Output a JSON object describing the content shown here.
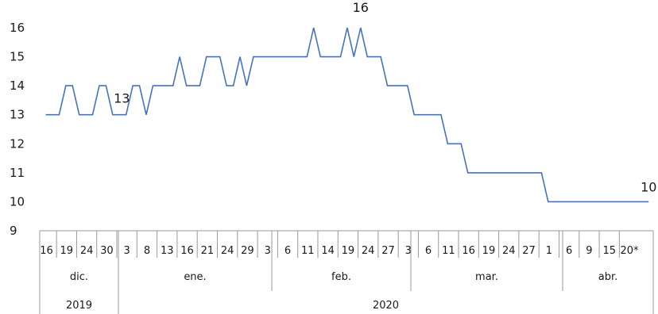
{
  "chart_data": {
    "type": "line",
    "title": "",
    "xlabel": "",
    "ylabel": "",
    "ylim": [
      9,
      16
    ],
    "yticks": [
      "9",
      "10",
      "11",
      "12",
      "13",
      "14",
      "15",
      "16"
    ],
    "grid": false,
    "legend": "none",
    "colors": {
      "series": "#4472c4",
      "axis": "#9a9a9a",
      "text": "#1a1a1a"
    },
    "x_tick_labels": [
      "16",
      "19",
      "24",
      "30",
      "3",
      "8",
      "13",
      "16",
      "21",
      "24",
      "29",
      "3",
      "6",
      "11",
      "14",
      "19",
      "24",
      "27",
      "3",
      "6",
      "11",
      "16",
      "19",
      "24",
      "27",
      "1",
      "6",
      "9",
      "15",
      "20*"
    ],
    "months": [
      "dic.",
      "ene.",
      "feb.",
      "mar.",
      "abr."
    ],
    "years": [
      "2019",
      "2020"
    ],
    "series": [
      {
        "values": [
          13,
          13,
          13,
          14,
          14,
          13,
          13,
          13,
          14,
          14,
          13,
          13,
          13,
          14,
          14,
          13,
          14,
          14,
          14,
          14,
          15,
          14,
          14,
          14,
          15,
          15,
          15,
          14,
          14,
          15,
          14,
          15,
          15,
          15,
          15,
          15,
          15,
          15,
          15,
          15,
          16,
          15,
          15,
          15,
          15,
          16,
          15,
          16,
          15,
          15,
          15,
          14,
          14,
          14,
          14,
          13,
          13,
          13,
          13,
          13,
          12,
          12,
          12,
          11,
          11,
          11,
          11,
          11,
          11,
          11,
          11,
          11,
          11,
          11,
          11,
          10,
          10,
          10,
          10,
          10,
          10,
          10,
          10,
          10,
          10,
          10,
          10,
          10,
          10,
          10,
          10
        ]
      }
    ],
    "data_labels": [
      {
        "index": 11,
        "text": "13"
      },
      {
        "index": 47,
        "text": "16"
      },
      {
        "index": 90,
        "text": "10"
      }
    ]
  }
}
